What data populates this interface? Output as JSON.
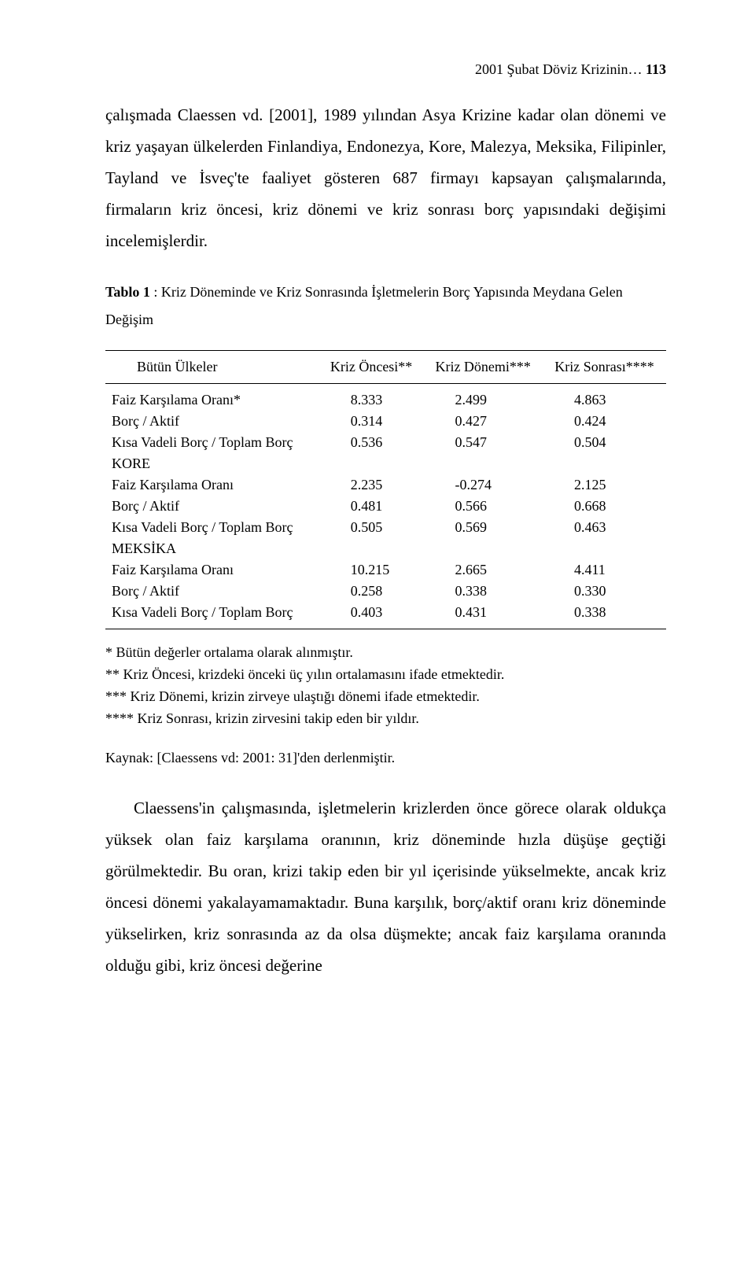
{
  "runningHead": {
    "title": "2001 Şubat Döviz Krizinin…",
    "page": "113"
  },
  "intro": "çalışmada Claessen vd. [2001], 1989 yılından Asya Krizine kadar olan dönemi ve kriz yaşayan ülkelerden Finlandiya, Endonezya, Kore, Malezya, Meksika, Filipinler, Tayland ve İsveç'te faaliyet gösteren 687 firmayı kapsayan çalışmalarında, firmaların kriz öncesi, kriz dönemi ve kriz sonrası borç yapısındaki değişimi incelemişlerdir.",
  "table": {
    "label": "Tablo 1",
    "caption": ": Kriz Döneminde ve Kriz Sonrasında İşletmelerin Borç Yapısında Meydana Gelen Değişim",
    "columns": [
      "Bütün Ülkeler",
      "Kriz Öncesi**",
      "Kriz Dönemi***",
      "Kriz Sonrası****"
    ],
    "rows": [
      {
        "label": "Faiz Karşılama Oranı*",
        "c1": "8.333",
        "c2": "2.499",
        "c3": "4.863"
      },
      {
        "label": "Borç / Aktif",
        "c1": "0.314",
        "c2": "0.427",
        "c3": "0.424"
      },
      {
        "label": "Kısa Vadeli Borç / Toplam Borç",
        "c1": "0.536",
        "c2": "0.547",
        "c3": "0.504"
      },
      {
        "label": "KORE",
        "c1": "",
        "c2": "",
        "c3": ""
      },
      {
        "label": "Faiz Karşılama Oranı",
        "c1": "2.235",
        "c2": "-0.274",
        "c3": "2.125"
      },
      {
        "label": "Borç / Aktif",
        "c1": "0.481",
        "c2": "0.566",
        "c3": "0.668"
      },
      {
        "label": "Kısa Vadeli Borç / Toplam Borç",
        "c1": "0.505",
        "c2": "0.569",
        "c3": "0.463"
      },
      {
        "label": "MEKSİKA",
        "c1": "",
        "c2": "",
        "c3": ""
      },
      {
        "label": "Faiz Karşılama Oranı",
        "c1": "10.215",
        "c2": "2.665",
        "c3": "4.411"
      },
      {
        "label": "Borç / Aktif",
        "c1": "0.258",
        "c2": "0.338",
        "c3": "0.330"
      },
      {
        "label": "Kısa Vadeli Borç / Toplam Borç",
        "c1": "0.403",
        "c2": "0.431",
        "c3": "0.338"
      }
    ]
  },
  "footnotes": {
    "n1": "* Bütün değerler ortalama olarak alınmıştır.",
    "n2": "** Kriz Öncesi, krizdeki önceki üç yılın ortalamasını ifade etmektedir.",
    "n3": "*** Kriz Dönemi, krizin zirveye ulaştığı dönemi ifade etmektedir.",
    "n4": "**** Kriz Sonrası, krizin zirvesini takip eden bir yıldır."
  },
  "source": "Kaynak: [Claessens vd: 2001: 31]'den derlenmiştir.",
  "outro": "Claessens'in çalışmasında, işletmelerin krizlerden önce görece olarak oldukça yüksek olan faiz karşılama oranının, kriz döneminde hızla düşüşe geçtiği görülmektedir. Bu oran, krizi takip eden bir yıl içerisinde yükselmekte, ancak kriz öncesi dönemi yakalayamamaktadır. Buna karşılık, borç/aktif oranı kriz döneminde yükselirken, kriz sonrasında az da olsa düşmekte; ancak faiz karşılama oranında olduğu gibi, kriz öncesi değerine"
}
